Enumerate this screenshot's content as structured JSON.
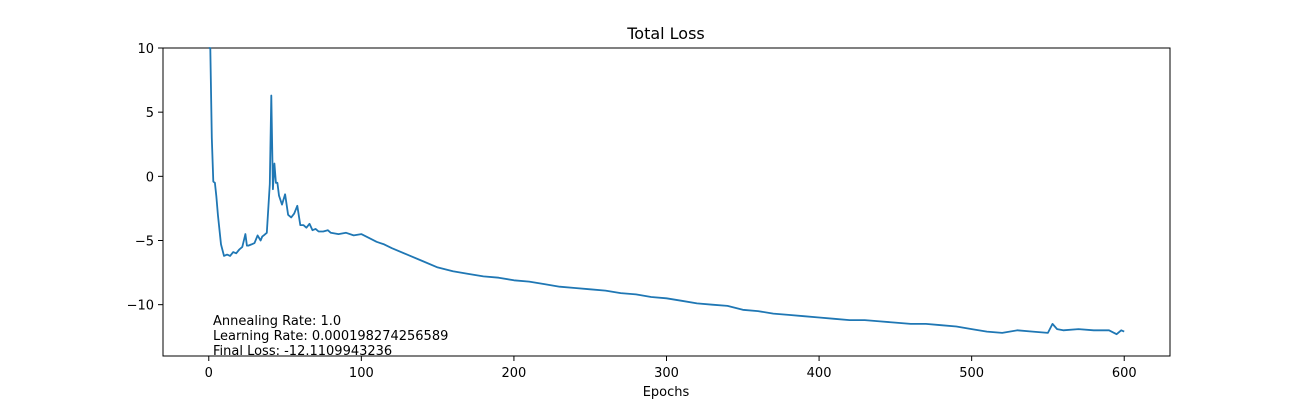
{
  "chart_data": {
    "type": "line",
    "title": "Total Loss",
    "xlabel": "Epochs",
    "ylabel": "",
    "xlim": [
      -30,
      630
    ],
    "ylim": [
      -14,
      10
    ],
    "xticks": [
      0,
      100,
      200,
      300,
      400,
      500,
      600
    ],
    "yticks": [
      -10,
      -5,
      0,
      5,
      10
    ],
    "xtick_labels": [
      "0",
      "100",
      "200",
      "300",
      "400",
      "500",
      "600"
    ],
    "ytick_labels": [
      "−10",
      "−5",
      "0",
      "5",
      "10"
    ],
    "grid": false,
    "annotations": [
      "Annealing Rate: 1.0",
      "Learning Rate: 0.000198274256589",
      "Final Loss: -12.1109943236"
    ],
    "color": "#1f77b4",
    "series": [
      {
        "x": [
          0,
          1,
          2,
          3,
          4,
          5,
          6,
          8,
          10,
          12,
          14,
          16,
          18,
          20,
          22,
          24,
          25,
          26,
          28,
          30,
          32,
          34,
          35,
          36,
          38,
          40,
          41,
          42,
          43,
          44,
          45,
          46,
          48,
          50,
          52,
          54,
          56,
          58,
          60,
          62,
          64,
          66,
          68,
          70,
          72,
          75,
          78,
          80,
          85,
          90,
          95,
          100,
          105,
          110,
          115,
          120,
          130,
          140,
          150,
          160,
          170,
          180,
          190,
          200,
          210,
          220,
          230,
          240,
          250,
          260,
          270,
          280,
          290,
          300,
          310,
          320,
          330,
          340,
          350,
          360,
          370,
          380,
          390,
          400,
          410,
          420,
          430,
          440,
          450,
          460,
          470,
          480,
          490,
          500,
          510,
          520,
          530,
          540,
          550,
          553,
          556,
          560,
          570,
          580,
          590,
          595,
          598,
          600
        ],
        "y": [
          10.0,
          10.0,
          3.0,
          -0.4,
          -0.5,
          -1.6,
          -3.0,
          -5.3,
          -6.2,
          -6.1,
          -6.2,
          -5.9,
          -6.0,
          -5.7,
          -5.5,
          -4.5,
          -5.4,
          -5.4,
          -5.3,
          -5.2,
          -4.6,
          -5.0,
          -4.7,
          -4.6,
          -4.4,
          -0.6,
          6.3,
          -1.0,
          1.0,
          -0.5,
          -0.5,
          -1.5,
          -2.2,
          -1.4,
          -3.0,
          -3.2,
          -2.9,
          -2.3,
          -3.8,
          -3.8,
          -4.0,
          -3.7,
          -4.2,
          -4.1,
          -4.3,
          -4.3,
          -4.2,
          -4.4,
          -4.5,
          -4.4,
          -4.6,
          -4.5,
          -4.8,
          -5.1,
          -5.3,
          -5.6,
          -6.1,
          -6.6,
          -7.1,
          -7.4,
          -7.6,
          -7.8,
          -7.9,
          -8.1,
          -8.2,
          -8.4,
          -8.6,
          -8.7,
          -8.8,
          -8.9,
          -9.1,
          -9.2,
          -9.4,
          -9.5,
          -9.7,
          -9.9,
          -10.0,
          -10.1,
          -10.4,
          -10.5,
          -10.7,
          -10.8,
          -10.9,
          -11.0,
          -11.1,
          -11.2,
          -11.2,
          -11.3,
          -11.4,
          -11.5,
          -11.5,
          -11.6,
          -11.7,
          -11.9,
          -12.1,
          -12.2,
          -12.0,
          -12.1,
          -12.2,
          -11.5,
          -11.9,
          -12.0,
          -11.9,
          -12.0,
          -12.0,
          -12.3,
          -12.0,
          -12.1
        ]
      }
    ]
  }
}
